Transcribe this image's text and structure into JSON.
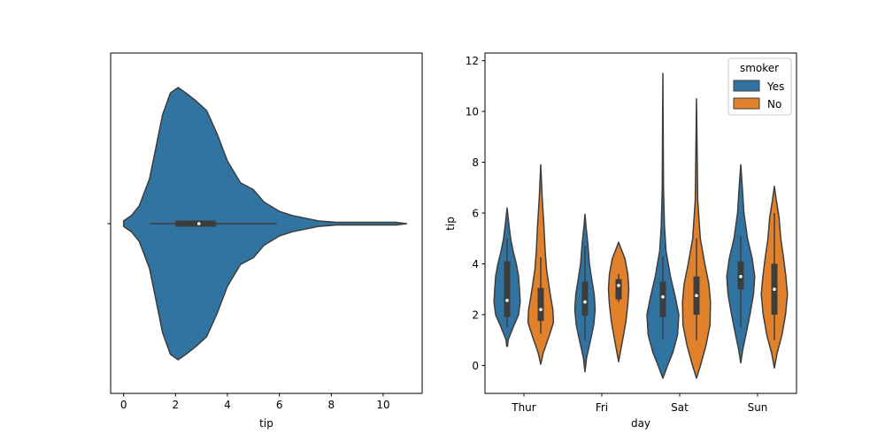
{
  "chart_data": [
    {
      "type": "violin",
      "orientation": "horizontal",
      "xlabel": "tip",
      "ylabel": "",
      "xlim": [
        -0.5,
        11.5
      ],
      "xticks": [
        0,
        2,
        4,
        6,
        8,
        10
      ],
      "color": "#3274a1",
      "violin": {
        "density": [
          [
            0.0,
            0.02
          ],
          [
            0.3,
            0.06
          ],
          [
            0.6,
            0.13
          ],
          [
            1.0,
            0.33
          ],
          [
            1.5,
            0.8
          ],
          [
            1.8,
            0.96
          ],
          [
            2.1,
            1.0
          ],
          [
            2.4,
            0.96
          ],
          [
            2.8,
            0.9
          ],
          [
            3.2,
            0.83
          ],
          [
            3.6,
            0.66
          ],
          [
            4.0,
            0.46
          ],
          [
            4.5,
            0.3
          ],
          [
            5.0,
            0.25
          ],
          [
            5.4,
            0.16
          ],
          [
            6.0,
            0.09
          ],
          [
            6.5,
            0.06
          ],
          [
            7.0,
            0.04
          ],
          [
            7.5,
            0.02
          ],
          [
            8.2,
            0.01
          ],
          [
            9.0,
            0.01
          ],
          [
            9.5,
            0.01
          ],
          [
            10.0,
            0.01
          ],
          [
            10.5,
            0.01
          ],
          [
            10.9,
            0.0
          ]
        ],
        "box": {
          "q1": 2.0,
          "median": 2.9,
          "q3": 3.56
        },
        "whiskers": [
          1.0,
          5.9
        ]
      }
    },
    {
      "type": "violin",
      "orientation": "vertical",
      "xlabel": "day",
      "ylabel": "tip",
      "categories": [
        "Thur",
        "Fri",
        "Sat",
        "Sun"
      ],
      "ylim": [
        -1.1,
        12.3
      ],
      "yticks": [
        0,
        2,
        4,
        6,
        8,
        10,
        12
      ],
      "legend": {
        "title": "smoker",
        "location": "upper right"
      },
      "series": [
        {
          "name": "Yes",
          "color": "#3274a1",
          "violins": [
            {
              "density": [
                [
                  0.75,
                  0.02
                ],
                [
                  1.0,
                  0.06
                ],
                [
                  1.5,
                  0.38
                ],
                [
                  2.0,
                  0.72
                ],
                [
                  2.5,
                  0.82
                ],
                [
                  3.0,
                  0.78
                ],
                [
                  3.5,
                  0.72
                ],
                [
                  4.0,
                  0.58
                ],
                [
                  4.5,
                  0.38
                ],
                [
                  5.0,
                  0.22
                ],
                [
                  5.5,
                  0.12
                ],
                [
                  6.2,
                  0.0
                ]
              ],
              "box": {
                "q1": 1.9,
                "median": 2.56,
                "q3": 4.1
              },
              "whiskers": [
                1.5,
                5.0
              ]
            },
            {
              "density": [
                [
                  -0.25,
                  0.0
                ],
                [
                  0.3,
                  0.1
                ],
                [
                  1.0,
                  0.35
                ],
                [
                  1.6,
                  0.55
                ],
                [
                  2.2,
                  0.64
                ],
                [
                  2.8,
                  0.58
                ],
                [
                  3.4,
                  0.42
                ],
                [
                  4.0,
                  0.28
                ],
                [
                  4.8,
                  0.18
                ],
                [
                  5.5,
                  0.06
                ],
                [
                  5.95,
                  0.0
                ]
              ],
              "box": {
                "q1": 1.96,
                "median": 2.5,
                "q3": 3.3
              },
              "whiskers": [
                1.0,
                4.7
              ]
            },
            {
              "density": [
                [
                  -0.5,
                  0.0
                ],
                [
                  0.0,
                  0.3
                ],
                [
                  0.5,
                  0.62
                ],
                [
                  1.2,
                  0.92
                ],
                [
                  2.0,
                  1.0
                ],
                [
                  2.7,
                  0.78
                ],
                [
                  3.5,
                  0.48
                ],
                [
                  4.5,
                  0.2
                ],
                [
                  5.5,
                  0.1
                ],
                [
                  7.0,
                  0.04
                ],
                [
                  9.0,
                  0.02
                ],
                [
                  11.5,
                  0.0
                ]
              ],
              "box": {
                "q1": 1.9,
                "median": 2.7,
                "q3": 3.3
              },
              "whiskers": [
                1.0,
                4.3
              ]
            },
            {
              "density": [
                [
                  0.1,
                  0.0
                ],
                [
                  0.6,
                  0.12
                ],
                [
                  1.2,
                  0.32
                ],
                [
                  2.0,
                  0.58
                ],
                [
                  2.8,
                  0.8
                ],
                [
                  3.5,
                  0.88
                ],
                [
                  4.2,
                  0.72
                ],
                [
                  5.0,
                  0.42
                ],
                [
                  6.0,
                  0.2
                ],
                [
                  7.0,
                  0.1
                ],
                [
                  7.9,
                  0.0
                ]
              ],
              "box": {
                "q1": 3.0,
                "median": 3.5,
                "q3": 4.1
              },
              "whiskers": [
                1.5,
                5.1
              ]
            }
          ]
        },
        {
          "name": "No",
          "color": "#e1812c",
          "violins": [
            {
              "density": [
                [
                  0.05,
                  0.0
                ],
                [
                  0.5,
                  0.16
                ],
                [
                  1.2,
                  0.55
                ],
                [
                  1.7,
                  0.8
                ],
                [
                  2.2,
                  0.76
                ],
                [
                  2.7,
                  0.62
                ],
                [
                  3.2,
                  0.5
                ],
                [
                  3.8,
                  0.36
                ],
                [
                  4.5,
                  0.28
                ],
                [
                  5.5,
                  0.2
                ],
                [
                  6.5,
                  0.1
                ],
                [
                  7.9,
                  0.0
                ]
              ],
              "box": {
                "q1": 1.75,
                "median": 2.2,
                "q3": 3.05
              },
              "whiskers": [
                1.25,
                4.25
              ]
            },
            {
              "density": [
                [
                  0.15,
                  0.0
                ],
                [
                  1.0,
                  0.25
                ],
                [
                  1.7,
                  0.45
                ],
                [
                  2.4,
                  0.58
                ],
                [
                  3.0,
                  0.64
                ],
                [
                  3.6,
                  0.58
                ],
                [
                  4.2,
                  0.4
                ],
                [
                  4.6,
                  0.15
                ],
                [
                  4.85,
                  0.0
                ]
              ],
              "box": {
                "q1": 2.6,
                "median": 3.15,
                "q3": 3.4
              },
              "whiskers": [
                2.5,
                3.6
              ]
            },
            {
              "density": [
                [
                  -0.5,
                  0.0
                ],
                [
                  0.0,
                  0.25
                ],
                [
                  0.8,
                  0.6
                ],
                [
                  1.6,
                  0.85
                ],
                [
                  2.5,
                  0.88
                ],
                [
                  3.2,
                  0.78
                ],
                [
                  4.0,
                  0.52
                ],
                [
                  5.0,
                  0.24
                ],
                [
                  6.5,
                  0.08
                ],
                [
                  8.5,
                  0.04
                ],
                [
                  10.5,
                  0.0
                ]
              ],
              "box": {
                "q1": 2.0,
                "median": 2.75,
                "q3": 3.5
              },
              "whiskers": [
                1.0,
                5.0
              ]
            },
            {
              "density": [
                [
                  -0.1,
                  0.0
                ],
                [
                  0.5,
                  0.18
                ],
                [
                  1.2,
                  0.48
                ],
                [
                  2.0,
                  0.7
                ],
                [
                  2.8,
                  0.82
                ],
                [
                  3.5,
                  0.72
                ],
                [
                  4.3,
                  0.56
                ],
                [
                  5.0,
                  0.4
                ],
                [
                  5.8,
                  0.3
                ],
                [
                  6.5,
                  0.12
                ],
                [
                  7.05,
                  0.0
                ]
              ],
              "box": {
                "q1": 2.0,
                "median": 3.0,
                "q3": 4.0
              },
              "whiskers": [
                1.0,
                6.0
              ]
            }
          ]
        }
      ]
    }
  ]
}
